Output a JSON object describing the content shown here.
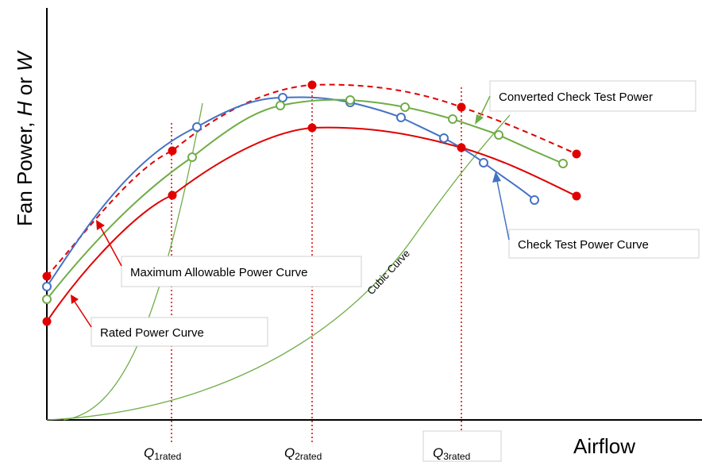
{
  "chart_data": {
    "type": "line",
    "title": "",
    "ylabel": {
      "prefix": "Fan Power, ",
      "var1": "H",
      "mid": " or ",
      "var2": "W"
    },
    "xlabel": "Airflow",
    "x_markers": [
      {
        "letter": "Q",
        "sub": "1rated"
      },
      {
        "letter": "Q",
        "sub": "2rated"
      },
      {
        "letter": "Q",
        "sub": "3rated"
      }
    ],
    "series": [
      {
        "name": "Maximum Allowable Power Curve",
        "color": "#e00000",
        "style": "dashed",
        "marker": "filled-circle"
      },
      {
        "name": "Rated Power Curve",
        "color": "#e00000",
        "style": "solid",
        "marker": "filled-circle"
      },
      {
        "name": "Check Test Power Curve",
        "color": "#4472c4",
        "style": "solid",
        "marker": "open-circle"
      },
      {
        "name": "Converted Check Test Power",
        "color": "#70ad47",
        "style": "solid",
        "marker": "open-circle"
      },
      {
        "name": "Cubic Curve",
        "color": "#70ad47",
        "style": "solid",
        "marker": "none"
      }
    ],
    "annotations": [
      "Maximum Allowable Power Curve",
      "Rated Power Curve",
      "Converted Check Test Power",
      "Check Test Power Curve",
      "Cubic Curve"
    ],
    "axis_values_shown": false,
    "grid": false
  }
}
